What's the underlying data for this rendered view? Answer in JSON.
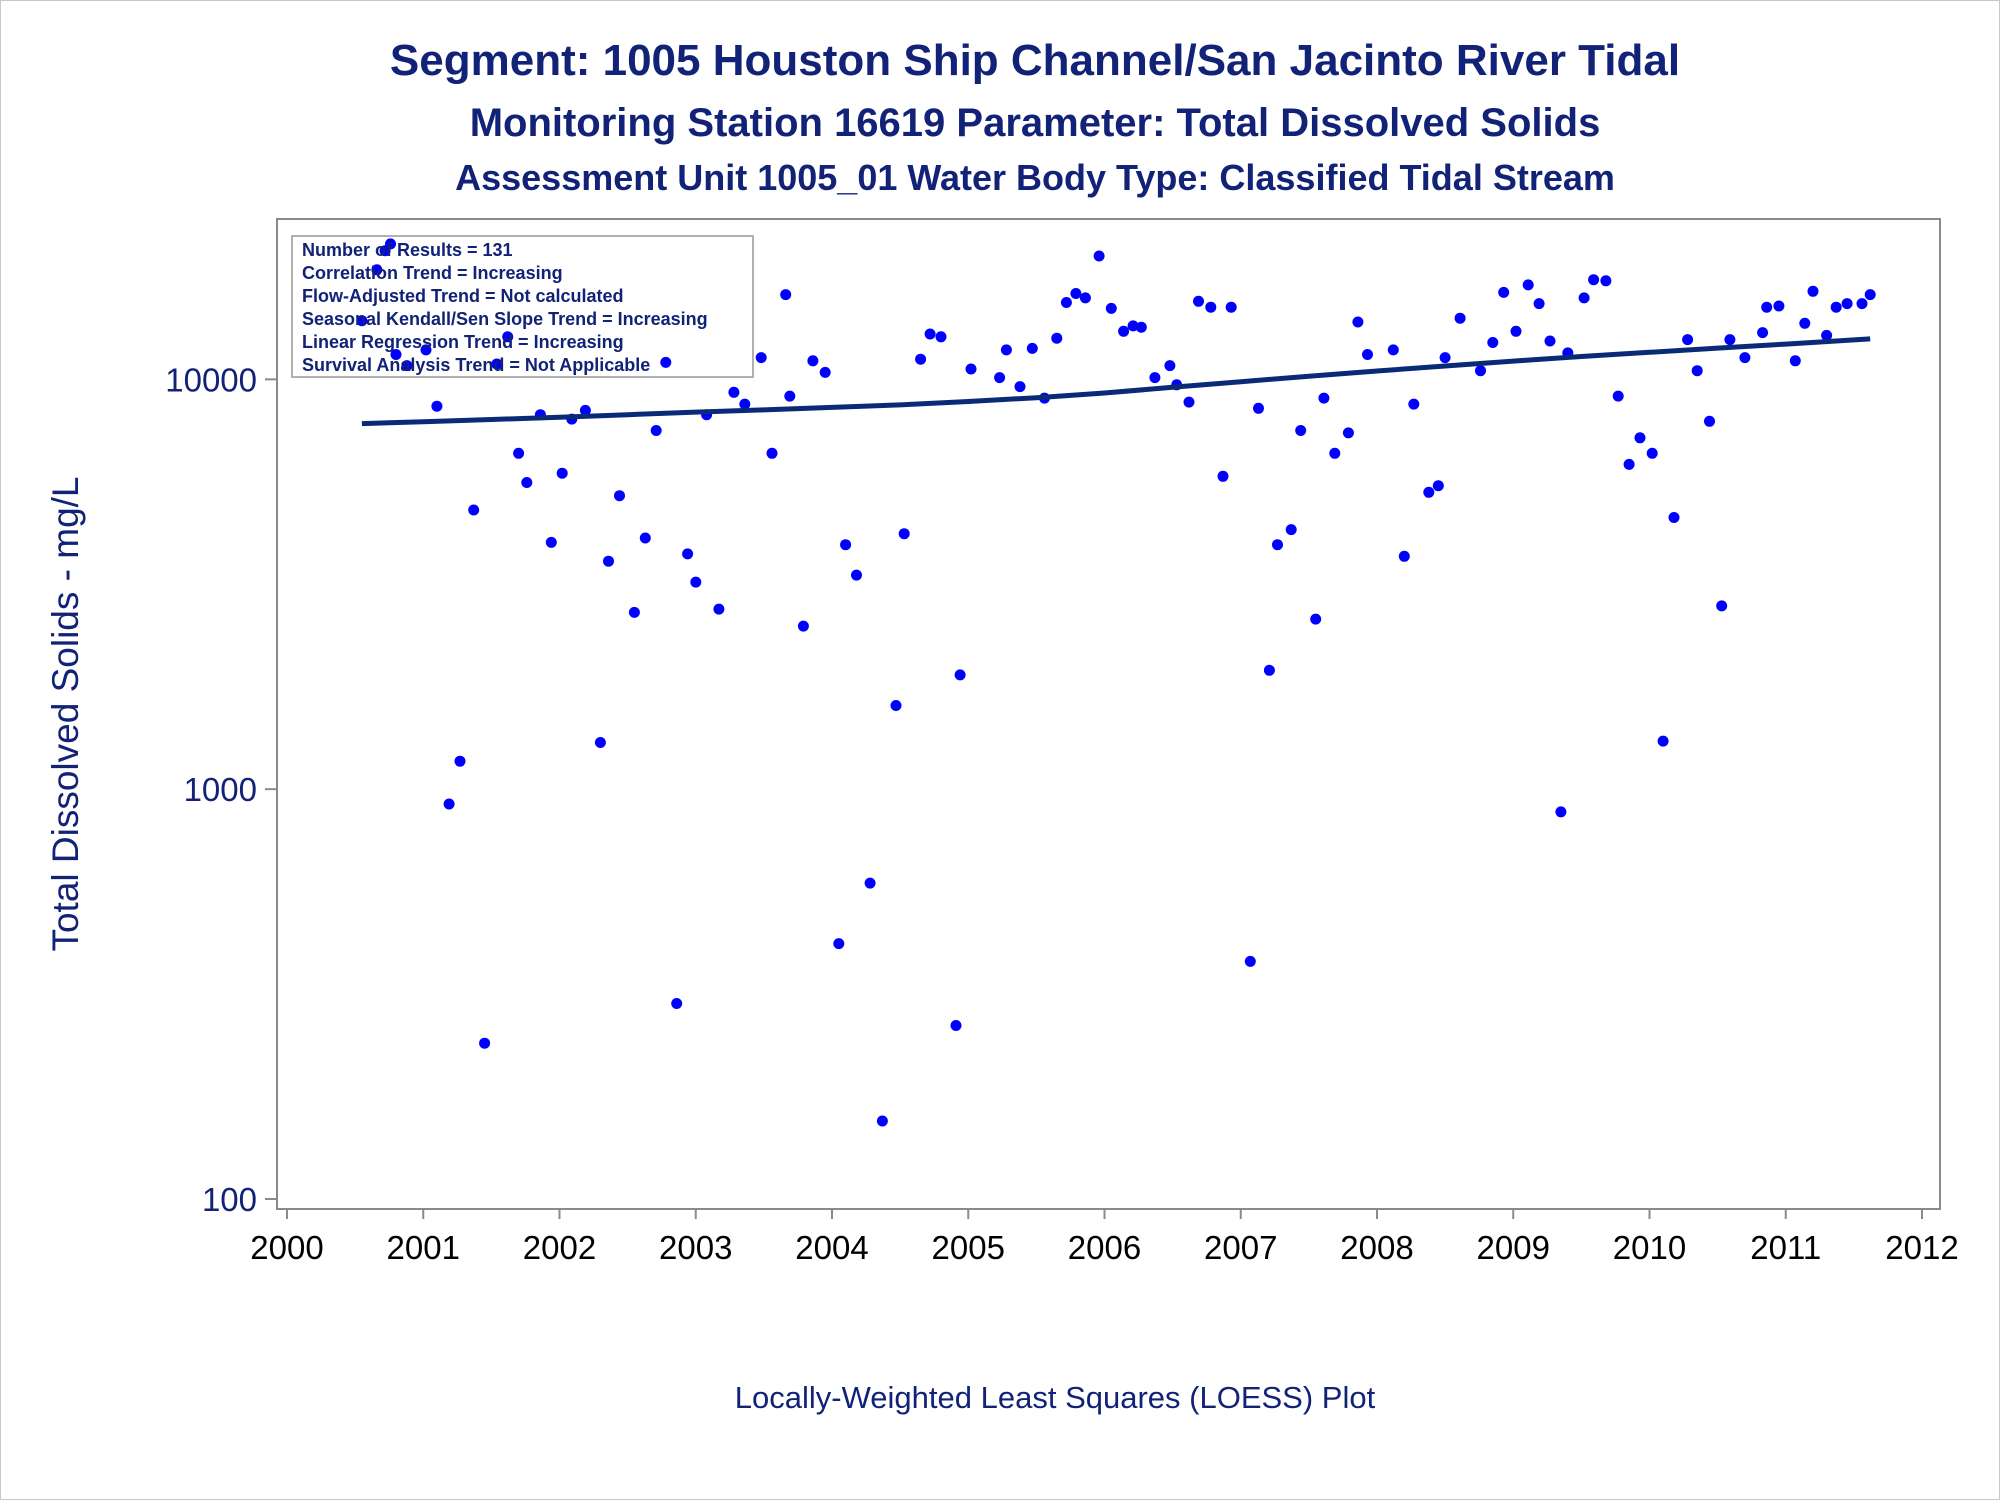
{
  "titles": {
    "line1": "Segment: 1005  Houston Ship Channel/San Jacinto River Tidal",
    "line2": "Monitoring Station 16619 Parameter: Total Dissolved Solids",
    "line3": "Assessment Unit 1005_01   Water Body Type: Classified Tidal Stream"
  },
  "footnote": "Locally-Weighted Least Squares (LOESS) Plot",
  "legend_box": [
    "Number of Results = 131",
    "Correlation Trend = Increasing",
    "Flow-Adjusted Trend = Not calculated",
    "Seasonal Kendall/Sen Slope Trend = Increasing",
    "Linear Regression Trend = Increasing",
    "Survival Analysis Trend = Not Applicable"
  ],
  "colors": {
    "points": "#0000ff",
    "trend_line": "#0a2a78",
    "text": "#112277",
    "axis": "#8a8a8a"
  },
  "chart_data": {
    "type": "scatter",
    "title": "Segment: 1005  Houston Ship Channel/San Jacinto River Tidal",
    "xlabel": "",
    "ylabel": "Total Dissolved Solids - mg/L",
    "y_scale": "log",
    "xlim": [
      2000,
      2012
    ],
    "ylim": [
      100,
      22000
    ],
    "x_ticks": [
      "2000",
      "2001",
      "2002",
      "2003",
      "2004",
      "2005",
      "2006",
      "2007",
      "2008",
      "2009",
      "2010",
      "2011",
      "2012"
    ],
    "y_ticks": [
      "100",
      "1000",
      "10000"
    ],
    "grid": false,
    "series": [
      {
        "type": "scatter",
        "points": [
          [
            2000.55,
            13900
          ],
          [
            2000.66,
            18500
          ],
          [
            2000.72,
            20600
          ],
          [
            2000.76,
            21400
          ],
          [
            2000.8,
            11500
          ],
          [
            2000.88,
            10800
          ],
          [
            2001.02,
            11800
          ],
          [
            2001.1,
            8600
          ],
          [
            2001.19,
            920
          ],
          [
            2001.27,
            1170
          ],
          [
            2001.37,
            4800
          ],
          [
            2001.45,
            240
          ],
          [
            2001.54,
            10900
          ],
          [
            2001.62,
            12700
          ],
          [
            2001.7,
            6600
          ],
          [
            2001.76,
            5600
          ],
          [
            2001.86,
            8200
          ],
          [
            2001.94,
            4000
          ],
          [
            2002.02,
            5900
          ],
          [
            2002.09,
            8000
          ],
          [
            2002.19,
            8400
          ],
          [
            2002.3,
            1300
          ],
          [
            2002.36,
            3600
          ],
          [
            2002.44,
            5200
          ],
          [
            2002.55,
            2700
          ],
          [
            2002.63,
            4100
          ],
          [
            2002.71,
            7500
          ],
          [
            2002.78,
            11000
          ],
          [
            2002.86,
            300
          ],
          [
            2002.94,
            3750
          ],
          [
            2003.0,
            3200
          ],
          [
            2003.08,
            8200
          ],
          [
            2003.17,
            2750
          ],
          [
            2003.28,
            9300
          ],
          [
            2003.36,
            8700
          ],
          [
            2003.48,
            11300
          ],
          [
            2003.56,
            6600
          ],
          [
            2003.66,
            16100
          ],
          [
            2003.69,
            9100
          ],
          [
            2003.79,
            2500
          ],
          [
            2003.86,
            11100
          ],
          [
            2003.95,
            10400
          ],
          [
            2004.05,
            420
          ],
          [
            2004.1,
            3950
          ],
          [
            2004.18,
            3330
          ],
          [
            2004.28,
            590
          ],
          [
            2004.37,
            155
          ],
          [
            2004.47,
            1600
          ],
          [
            2004.53,
            4200
          ],
          [
            2004.65,
            11200
          ],
          [
            2004.72,
            12900
          ],
          [
            2004.8,
            12700
          ],
          [
            2004.91,
            265
          ],
          [
            2004.94,
            1900
          ],
          [
            2005.02,
            10600
          ],
          [
            2005.23,
            10100
          ],
          [
            2005.28,
            11800
          ],
          [
            2005.38,
            9600
          ],
          [
            2005.47,
            11900
          ],
          [
            2005.56,
            9000
          ],
          [
            2005.65,
            12600
          ],
          [
            2005.72,
            15400
          ],
          [
            2005.79,
            16200
          ],
          [
            2005.86,
            15800
          ],
          [
            2005.96,
            20000
          ],
          [
            2006.05,
            14900
          ],
          [
            2006.14,
            13100
          ],
          [
            2006.21,
            13500
          ],
          [
            2006.27,
            13400
          ],
          [
            2006.37,
            10100
          ],
          [
            2006.48,
            10800
          ],
          [
            2006.53,
            9700
          ],
          [
            2006.62,
            8800
          ],
          [
            2006.69,
            15500
          ],
          [
            2006.78,
            15000
          ],
          [
            2006.87,
            5800
          ],
          [
            2006.93,
            15000
          ],
          [
            2007.07,
            380
          ],
          [
            2007.13,
            8500
          ],
          [
            2007.21,
            1950
          ],
          [
            2007.27,
            3950
          ],
          [
            2007.37,
            4300
          ],
          [
            2007.44,
            7500
          ],
          [
            2007.55,
            2600
          ],
          [
            2007.61,
            9000
          ],
          [
            2007.69,
            6600
          ],
          [
            2007.79,
            7400
          ],
          [
            2007.86,
            13800
          ],
          [
            2007.93,
            11500
          ],
          [
            2008.12,
            11800
          ],
          [
            2008.2,
            3700
          ],
          [
            2008.27,
            8700
          ],
          [
            2008.38,
            5300
          ],
          [
            2008.45,
            5500
          ],
          [
            2008.5,
            11300
          ],
          [
            2008.61,
            14100
          ],
          [
            2008.76,
            10500
          ],
          [
            2008.85,
            12300
          ],
          [
            2008.93,
            16300
          ],
          [
            2009.02,
            13100
          ],
          [
            2009.11,
            17000
          ],
          [
            2009.19,
            15300
          ],
          [
            2009.27,
            12400
          ],
          [
            2009.35,
            880
          ],
          [
            2009.4,
            11600
          ],
          [
            2009.52,
            15800
          ],
          [
            2009.59,
            17500
          ],
          [
            2009.68,
            17400
          ],
          [
            2009.77,
            9100
          ],
          [
            2009.85,
            6200
          ],
          [
            2009.93,
            7200
          ],
          [
            2010.02,
            6600
          ],
          [
            2010.1,
            1310
          ],
          [
            2010.18,
            4600
          ],
          [
            2010.28,
            12500
          ],
          [
            2010.35,
            10500
          ],
          [
            2010.44,
            7900
          ],
          [
            2010.53,
            2800
          ],
          [
            2010.59,
            12500
          ],
          [
            2010.7,
            11300
          ],
          [
            2010.83,
            13000
          ],
          [
            2010.86,
            15000
          ],
          [
            2010.95,
            15100
          ],
          [
            2011.07,
            11100
          ],
          [
            2011.14,
            13700
          ],
          [
            2011.2,
            16400
          ],
          [
            2011.3,
            12800
          ],
          [
            2011.37,
            15000
          ],
          [
            2011.45,
            15300
          ],
          [
            2011.56,
            15300
          ],
          [
            2011.62,
            16100
          ]
        ]
      },
      {
        "type": "line",
        "x": [
          2000.55,
          2001.0,
          2001.5,
          2002.0,
          2002.5,
          2003.0,
          2003.5,
          2004.0,
          2004.5,
          2005.0,
          2005.5,
          2006.0,
          2006.5,
          2007.0,
          2007.5,
          2008.0,
          2008.5,
          2009.0,
          2009.5,
          2010.0,
          2010.5,
          2011.0,
          2011.62
        ],
        "values": [
          7800,
          7880,
          7980,
          8080,
          8200,
          8320,
          8420,
          8540,
          8660,
          8830,
          9020,
          9260,
          9560,
          9870,
          10180,
          10480,
          10780,
          11080,
          11370,
          11640,
          11920,
          12190,
          12550
        ]
      }
    ]
  }
}
